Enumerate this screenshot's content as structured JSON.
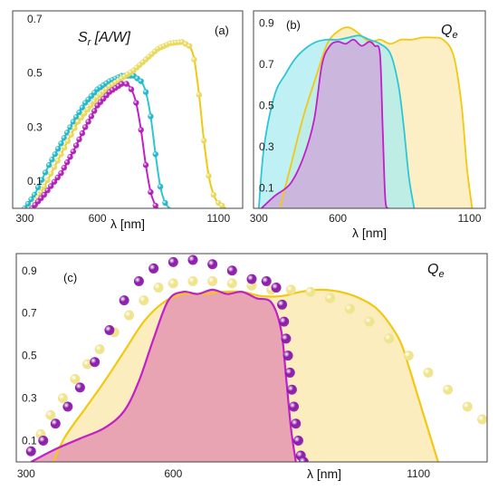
{
  "colors": {
    "cyan": "#2ec6d6",
    "cyan_fill": "#a9ecf0",
    "yellow": "#f2c811",
    "yellow_fill": "#fbeab3",
    "magenta": "#c21fc8",
    "magenta_fill": "#cfa3da",
    "pink_fill": "#e597b3",
    "sphere_yellow": "#f3ec9a",
    "sphere_purple": "#9a23b2"
  },
  "chart_data": [
    {
      "panel": "a",
      "tag": "(a)",
      "type": "line",
      "quantity": "S",
      "quantity_sub": "r",
      "quantity_unit": " [A/W]",
      "xlabel": "λ [nm]",
      "ylabel": "",
      "xlim": [
        250,
        1200
      ],
      "ylim": [
        0,
        0.73
      ],
      "xticks": [
        300,
        600,
        1100
      ],
      "yticks": [
        0.1,
        0.3,
        0.5,
        0.7
      ],
      "series": [
        {
          "color_key": "cyan",
          "style": "curve+markers",
          "points": [
            [
              300,
              0.0
            ],
            [
              340,
              0.05
            ],
            [
              400,
              0.16
            ],
            [
              450,
              0.24
            ],
            [
              500,
              0.32
            ],
            [
              550,
              0.39
            ],
            [
              600,
              0.44
            ],
            [
              650,
              0.47
            ],
            [
              700,
              0.49
            ],
            [
              750,
              0.49
            ],
            [
              780,
              0.47
            ],
            [
              800,
              0.43
            ],
            [
              820,
              0.34
            ],
            [
              840,
              0.2
            ],
            [
              860,
              0.08
            ],
            [
              880,
              0.02
            ],
            [
              900,
              0.0
            ]
          ]
        },
        {
          "color_key": "yellow",
          "style": "curve+markers",
          "points": [
            [
              330,
              0.0
            ],
            [
              380,
              0.08
            ],
            [
              450,
              0.2
            ],
            [
              520,
              0.32
            ],
            [
              600,
              0.41
            ],
            [
              650,
              0.45
            ],
            [
              700,
              0.48
            ],
            [
              750,
              0.51
            ],
            [
              800,
              0.55
            ],
            [
              850,
              0.59
            ],
            [
              900,
              0.61
            ],
            [
              950,
              0.615
            ],
            [
              980,
              0.6
            ],
            [
              1000,
              0.55
            ],
            [
              1020,
              0.42
            ],
            [
              1040,
              0.25
            ],
            [
              1060,
              0.12
            ],
            [
              1080,
              0.05
            ],
            [
              1100,
              0.02
            ],
            [
              1130,
              0.0
            ]
          ]
        },
        {
          "color_key": "magenta",
          "style": "curve+markers",
          "points": [
            [
              330,
              0.0
            ],
            [
              380,
              0.05
            ],
            [
              450,
              0.13
            ],
            [
              500,
              0.21
            ],
            [
              550,
              0.3
            ],
            [
              600,
              0.38
            ],
            [
              650,
              0.43
            ],
            [
              700,
              0.46
            ],
            [
              720,
              0.46
            ],
            [
              740,
              0.44
            ],
            [
              760,
              0.39
            ],
            [
              780,
              0.29
            ],
            [
              800,
              0.16
            ],
            [
              820,
              0.06
            ],
            [
              840,
              0.01
            ],
            [
              850,
              0.0
            ]
          ]
        }
      ]
    },
    {
      "panel": "b",
      "tag": "(b)",
      "type": "area",
      "quantity": "Q",
      "quantity_sub": "e",
      "xlabel": "λ [nm]",
      "ylabel": "",
      "xlim": [
        280,
        1160
      ],
      "ylim": [
        0,
        0.96
      ],
      "xticks": [
        300,
        600,
        1100
      ],
      "yticks": [
        0.1,
        0.3,
        0.5,
        0.7,
        0.9
      ],
      "series": [
        {
          "color_key": "yellow",
          "points": [
            [
              380,
              0.0
            ],
            [
              420,
              0.2
            ],
            [
              470,
              0.45
            ],
            [
              520,
              0.65
            ],
            [
              560,
              0.8
            ],
            [
              600,
              0.86
            ],
            [
              640,
              0.88
            ],
            [
              680,
              0.85
            ],
            [
              720,
              0.81
            ],
            [
              760,
              0.82
            ],
            [
              800,
              0.8
            ],
            [
              840,
              0.82
            ],
            [
              880,
              0.82
            ],
            [
              920,
              0.83
            ],
            [
              960,
              0.83
            ],
            [
              1000,
              0.82
            ],
            [
              1040,
              0.74
            ],
            [
              1070,
              0.5
            ],
            [
              1090,
              0.2
            ],
            [
              1110,
              0.0
            ]
          ]
        },
        {
          "color_key": "cyan",
          "points": [
            [
              300,
              0.0
            ],
            [
              320,
              0.3
            ],
            [
              360,
              0.55
            ],
            [
              400,
              0.65
            ],
            [
              440,
              0.73
            ],
            [
              480,
              0.78
            ],
            [
              520,
              0.81
            ],
            [
              560,
              0.82
            ],
            [
              600,
              0.82
            ],
            [
              640,
              0.83
            ],
            [
              680,
              0.84
            ],
            [
              720,
              0.82
            ],
            [
              760,
              0.8
            ],
            [
              800,
              0.75
            ],
            [
              830,
              0.6
            ],
            [
              850,
              0.4
            ],
            [
              870,
              0.15
            ],
            [
              890,
              0.0
            ]
          ]
        },
        {
          "color_key": "magenta",
          "points": [
            [
              310,
              0.0
            ],
            [
              360,
              0.06
            ],
            [
              420,
              0.12
            ],
            [
              470,
              0.25
            ],
            [
              510,
              0.43
            ],
            [
              540,
              0.7
            ],
            [
              570,
              0.79
            ],
            [
              600,
              0.81
            ],
            [
              630,
              0.8
            ],
            [
              660,
              0.82
            ],
            [
              690,
              0.79
            ],
            [
              720,
              0.81
            ],
            [
              740,
              0.79
            ],
            [
              760,
              0.75
            ],
            [
              770,
              0.4
            ],
            [
              780,
              0.05
            ],
            [
              790,
              0.0
            ]
          ]
        }
      ]
    },
    {
      "panel": "c",
      "tag": "(c)",
      "type": "area",
      "quantity": "Q",
      "quantity_sub": "e",
      "xlabel": "λ [nm]",
      "ylabel": "",
      "xlim": [
        280,
        1240
      ],
      "ylim": [
        0,
        0.98
      ],
      "xticks": [
        300,
        600,
        1100
      ],
      "yticks": [
        0.1,
        0.3,
        0.5,
        0.7,
        0.9
      ],
      "series": [
        {
          "color_key": "yellow",
          "style": "line+fill",
          "points": [
            [
              355,
              0.0
            ],
            [
              380,
              0.12
            ],
            [
              420,
              0.25
            ],
            [
              460,
              0.38
            ],
            [
              500,
              0.52
            ],
            [
              540,
              0.66
            ],
            [
              580,
              0.75
            ],
            [
              620,
              0.79
            ],
            [
              660,
              0.79
            ],
            [
              700,
              0.8
            ],
            [
              740,
              0.8
            ],
            [
              780,
              0.78
            ],
            [
              820,
              0.78
            ],
            [
              860,
              0.8
            ],
            [
              900,
              0.81
            ],
            [
              940,
              0.8
            ],
            [
              980,
              0.77
            ],
            [
              1020,
              0.71
            ],
            [
              1060,
              0.58
            ],
            [
              1080,
              0.45
            ],
            [
              1100,
              0.3
            ],
            [
              1120,
              0.15
            ],
            [
              1140,
              0.0
            ]
          ]
        },
        {
          "color_key": "magenta",
          "style": "line+fill",
          "points": [
            [
              310,
              0.0
            ],
            [
              360,
              0.06
            ],
            [
              410,
              0.11
            ],
            [
              460,
              0.16
            ],
            [
              500,
              0.24
            ],
            [
              530,
              0.38
            ],
            [
              560,
              0.58
            ],
            [
              590,
              0.76
            ],
            [
              620,
              0.8
            ],
            [
              650,
              0.79
            ],
            [
              680,
              0.81
            ],
            [
              710,
              0.79
            ],
            [
              740,
              0.8
            ],
            [
              770,
              0.77
            ],
            [
              800,
              0.75
            ],
            [
              820,
              0.62
            ],
            [
              830,
              0.4
            ],
            [
              840,
              0.16
            ],
            [
              850,
              0.0
            ]
          ]
        },
        {
          "color_key": "sphere_yellow",
          "style": "markers",
          "points": [
            [
              330,
              0.13
            ],
            [
              350,
              0.22
            ],
            [
              375,
              0.3
            ],
            [
              400,
              0.39
            ],
            [
              425,
              0.46
            ],
            [
              450,
              0.53
            ],
            [
              480,
              0.61
            ],
            [
              510,
              0.69
            ],
            [
              540,
              0.76
            ],
            [
              570,
              0.82
            ],
            [
              600,
              0.84
            ],
            [
              640,
              0.85
            ],
            [
              680,
              0.85
            ],
            [
              720,
              0.84
            ],
            [
              760,
              0.83
            ],
            [
              800,
              0.81
            ],
            [
              840,
              0.81
            ],
            [
              880,
              0.8
            ],
            [
              920,
              0.77
            ],
            [
              960,
              0.72
            ],
            [
              1000,
              0.66
            ],
            [
              1040,
              0.58
            ],
            [
              1080,
              0.5
            ],
            [
              1120,
              0.42
            ],
            [
              1160,
              0.34
            ],
            [
              1200,
              0.26
            ],
            [
              1230,
              0.2
            ]
          ]
        },
        {
          "color_key": "sphere_purple",
          "style": "markers",
          "points": [
            [
              310,
              0.05
            ],
            [
              335,
              0.1
            ],
            [
              360,
              0.18
            ],
            [
              385,
              0.26
            ],
            [
              410,
              0.35
            ],
            [
              440,
              0.47
            ],
            [
              470,
              0.62
            ],
            [
              500,
              0.76
            ],
            [
              530,
              0.85
            ],
            [
              560,
              0.91
            ],
            [
              600,
              0.94
            ],
            [
              640,
              0.95
            ],
            [
              680,
              0.93
            ],
            [
              720,
              0.9
            ],
            [
              760,
              0.86
            ],
            [
              790,
              0.85
            ],
            [
              810,
              0.82
            ],
            [
              822,
              0.74
            ],
            [
              826,
              0.66
            ],
            [
              830,
              0.58
            ],
            [
              834,
              0.5
            ],
            [
              838,
              0.42
            ],
            [
              842,
              0.34
            ],
            [
              846,
              0.26
            ],
            [
              850,
              0.18
            ],
            [
              855,
              0.1
            ],
            [
              860,
              0.03
            ],
            [
              866,
              0.0
            ]
          ]
        }
      ]
    }
  ]
}
